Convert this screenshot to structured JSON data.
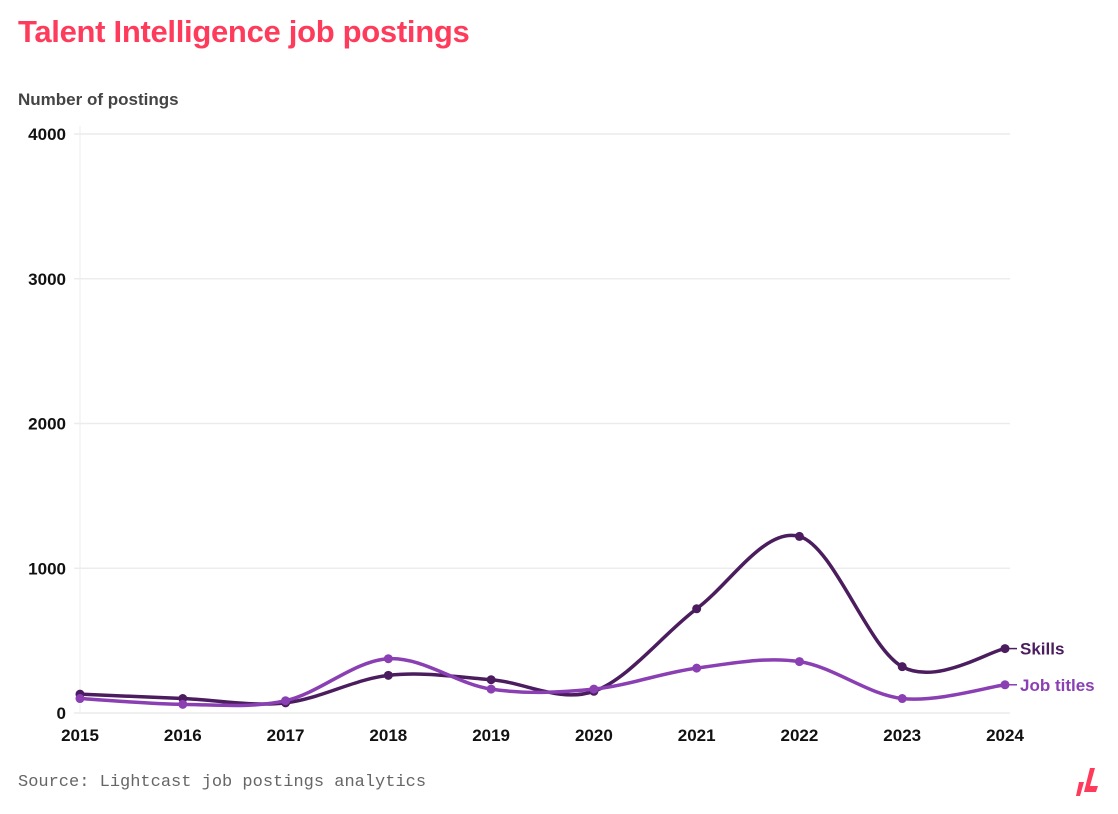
{
  "chart_data": {
    "type": "line",
    "title": "Talent Intelligence job postings",
    "ylabel": "Number of postings",
    "xlabel": "",
    "x": [
      "2015",
      "2016",
      "2017",
      "2018",
      "2019",
      "2020",
      "2021",
      "2022",
      "2023",
      "2024"
    ],
    "ylim": [
      0,
      4000
    ],
    "yticks": [
      "0",
      "1000",
      "2000",
      "3000",
      "4000"
    ],
    "grid": true,
    "legend": "inline-right",
    "series": [
      {
        "name": "Skills",
        "color": "#4b1c5e",
        "values": [
          130,
          100,
          70,
          260,
          230,
          150,
          720,
          1220,
          320,
          445
        ]
      },
      {
        "name": "Job titles",
        "color": "#8a3fb3",
        "values": [
          100,
          60,
          85,
          375,
          165,
          165,
          310,
          355,
          100,
          195
        ]
      }
    ],
    "source": "Source: Lightcast job postings analytics"
  },
  "brand_color": "#ff3b5c"
}
